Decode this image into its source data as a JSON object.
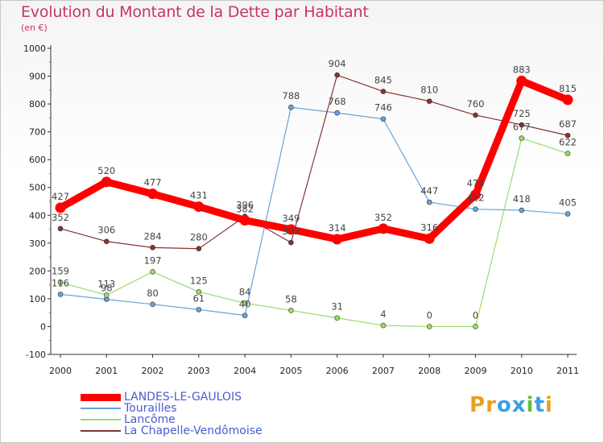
{
  "title": "Evolution du Montant de la Dette par Habitant",
  "subtitle": "(en €)",
  "logo": {
    "text": "Proxiti",
    "letter_colors": [
      "#e8a020",
      "#e8a020",
      "#3aa0e0",
      "#3aa0e0",
      "#60c040",
      "#3aa0e0",
      "#e8a020"
    ]
  },
  "chart_data": {
    "type": "line",
    "x": [
      2000,
      2001,
      2002,
      2003,
      2004,
      2005,
      2006,
      2007,
      2008,
      2009,
      2010,
      2011
    ],
    "ylim": [
      -100,
      1000
    ],
    "yticks": [
      -100,
      0,
      100,
      200,
      300,
      400,
      500,
      600,
      700,
      800,
      900,
      1000
    ],
    "grid": false,
    "legend_position": "bottom",
    "series": [
      {
        "name": "LANDES-LE-GAULOIS",
        "color": "#ff0000",
        "values": [
          427,
          520,
          477,
          431,
          382,
          349,
          314,
          352,
          316,
          474,
          883,
          815
        ],
        "labels": [
          "427",
          "520",
          "477",
          "431",
          "382",
          "349",
          "314",
          "352",
          "316",
          "474",
          "883",
          "815"
        ]
      },
      {
        "name": "Tourailles",
        "color": "#6aa2d8",
        "values": [
          116,
          98,
          80,
          61,
          40,
          788,
          768,
          746,
          447,
          422,
          418,
          405
        ],
        "labels": [
          "116",
          "98",
          "80",
          "61",
          "40",
          "788",
          "768",
          "746",
          "447",
          "422",
          "418",
          "405"
        ]
      },
      {
        "name": "Lancôme",
        "color": "#99dd66",
        "values": [
          159,
          113,
          197,
          125,
          84,
          58,
          31,
          4,
          0,
          0,
          677,
          622
        ],
        "labels": [
          "159",
          "113",
          "197",
          "125",
          "84",
          "58",
          "31",
          "4",
          "0",
          "0",
          "677",
          "622"
        ]
      },
      {
        "name": "La Chapelle-Vendômoise",
        "color": "#883333",
        "values": [
          352,
          306,
          284,
          280,
          396,
          302,
          904,
          845,
          810,
          760,
          725,
          687
        ],
        "labels": [
          "352",
          "306",
          "284",
          "280",
          "396",
          "302",
          "904",
          "845",
          "810",
          "760",
          "725",
          "687"
        ]
      }
    ]
  }
}
